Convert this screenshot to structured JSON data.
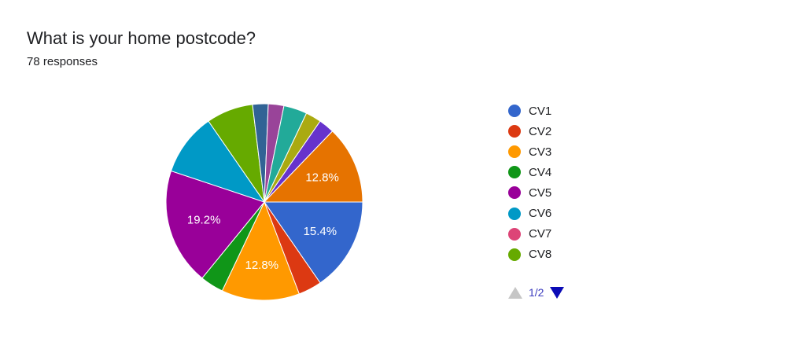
{
  "header": {
    "title": "What is your home postcode?",
    "subtitle": "78 responses"
  },
  "legend": {
    "items": [
      {
        "label": "CV1",
        "color": "#3366cc"
      },
      {
        "label": "CV2",
        "color": "#dc3912"
      },
      {
        "label": "CV3",
        "color": "#ff9900"
      },
      {
        "label": "CV4",
        "color": "#109618"
      },
      {
        "label": "CV5",
        "color": "#990099"
      },
      {
        "label": "CV6",
        "color": "#0099c6"
      },
      {
        "label": "CV7",
        "color": "#dd4477"
      },
      {
        "label": "CV8",
        "color": "#66aa00"
      }
    ],
    "pager": {
      "page": "1/2",
      "up_icon": "triangle-up-icon",
      "down_icon": "triangle-down-icon"
    }
  },
  "chart_data": {
    "type": "pie",
    "title": "What is your home postcode?",
    "total_responses": 78,
    "slices": [
      {
        "label": "CV1",
        "value": 12,
        "percent_label": "15.4%",
        "color": "#3366cc"
      },
      {
        "label": "CV2",
        "value": 3,
        "percent_label": "",
        "color": "#dc3912"
      },
      {
        "label": "CV3",
        "value": 10,
        "percent_label": "12.8%",
        "color": "#ff9900"
      },
      {
        "label": "CV4",
        "value": 3,
        "percent_label": "",
        "color": "#109618"
      },
      {
        "label": "CV5",
        "value": 15,
        "percent_label": "19.2%",
        "color": "#990099"
      },
      {
        "label": "CV6",
        "value": 8,
        "percent_label": "",
        "color": "#0099c6"
      },
      {
        "label": "CV7",
        "value": 0,
        "percent_label": "",
        "color": "#dd4477"
      },
      {
        "label": "CV8",
        "value": 6,
        "percent_label": "",
        "color": "#66aa00"
      },
      {
        "label": "",
        "value": 2,
        "percent_label": "",
        "color": "#316395"
      },
      {
        "label": "",
        "value": 2,
        "percent_label": "",
        "color": "#994499"
      },
      {
        "label": "",
        "value": 3,
        "percent_label": "",
        "color": "#22aa99"
      },
      {
        "label": "",
        "value": 2,
        "percent_label": "",
        "color": "#aaaa11"
      },
      {
        "label": "",
        "value": 2,
        "percent_label": "",
        "color": "#6633cc"
      },
      {
        "label": "",
        "value": 10,
        "percent_label": "12.8%",
        "color": "#e67300"
      }
    ],
    "start": "east",
    "direction": "clockwise",
    "legend_position": "right"
  }
}
